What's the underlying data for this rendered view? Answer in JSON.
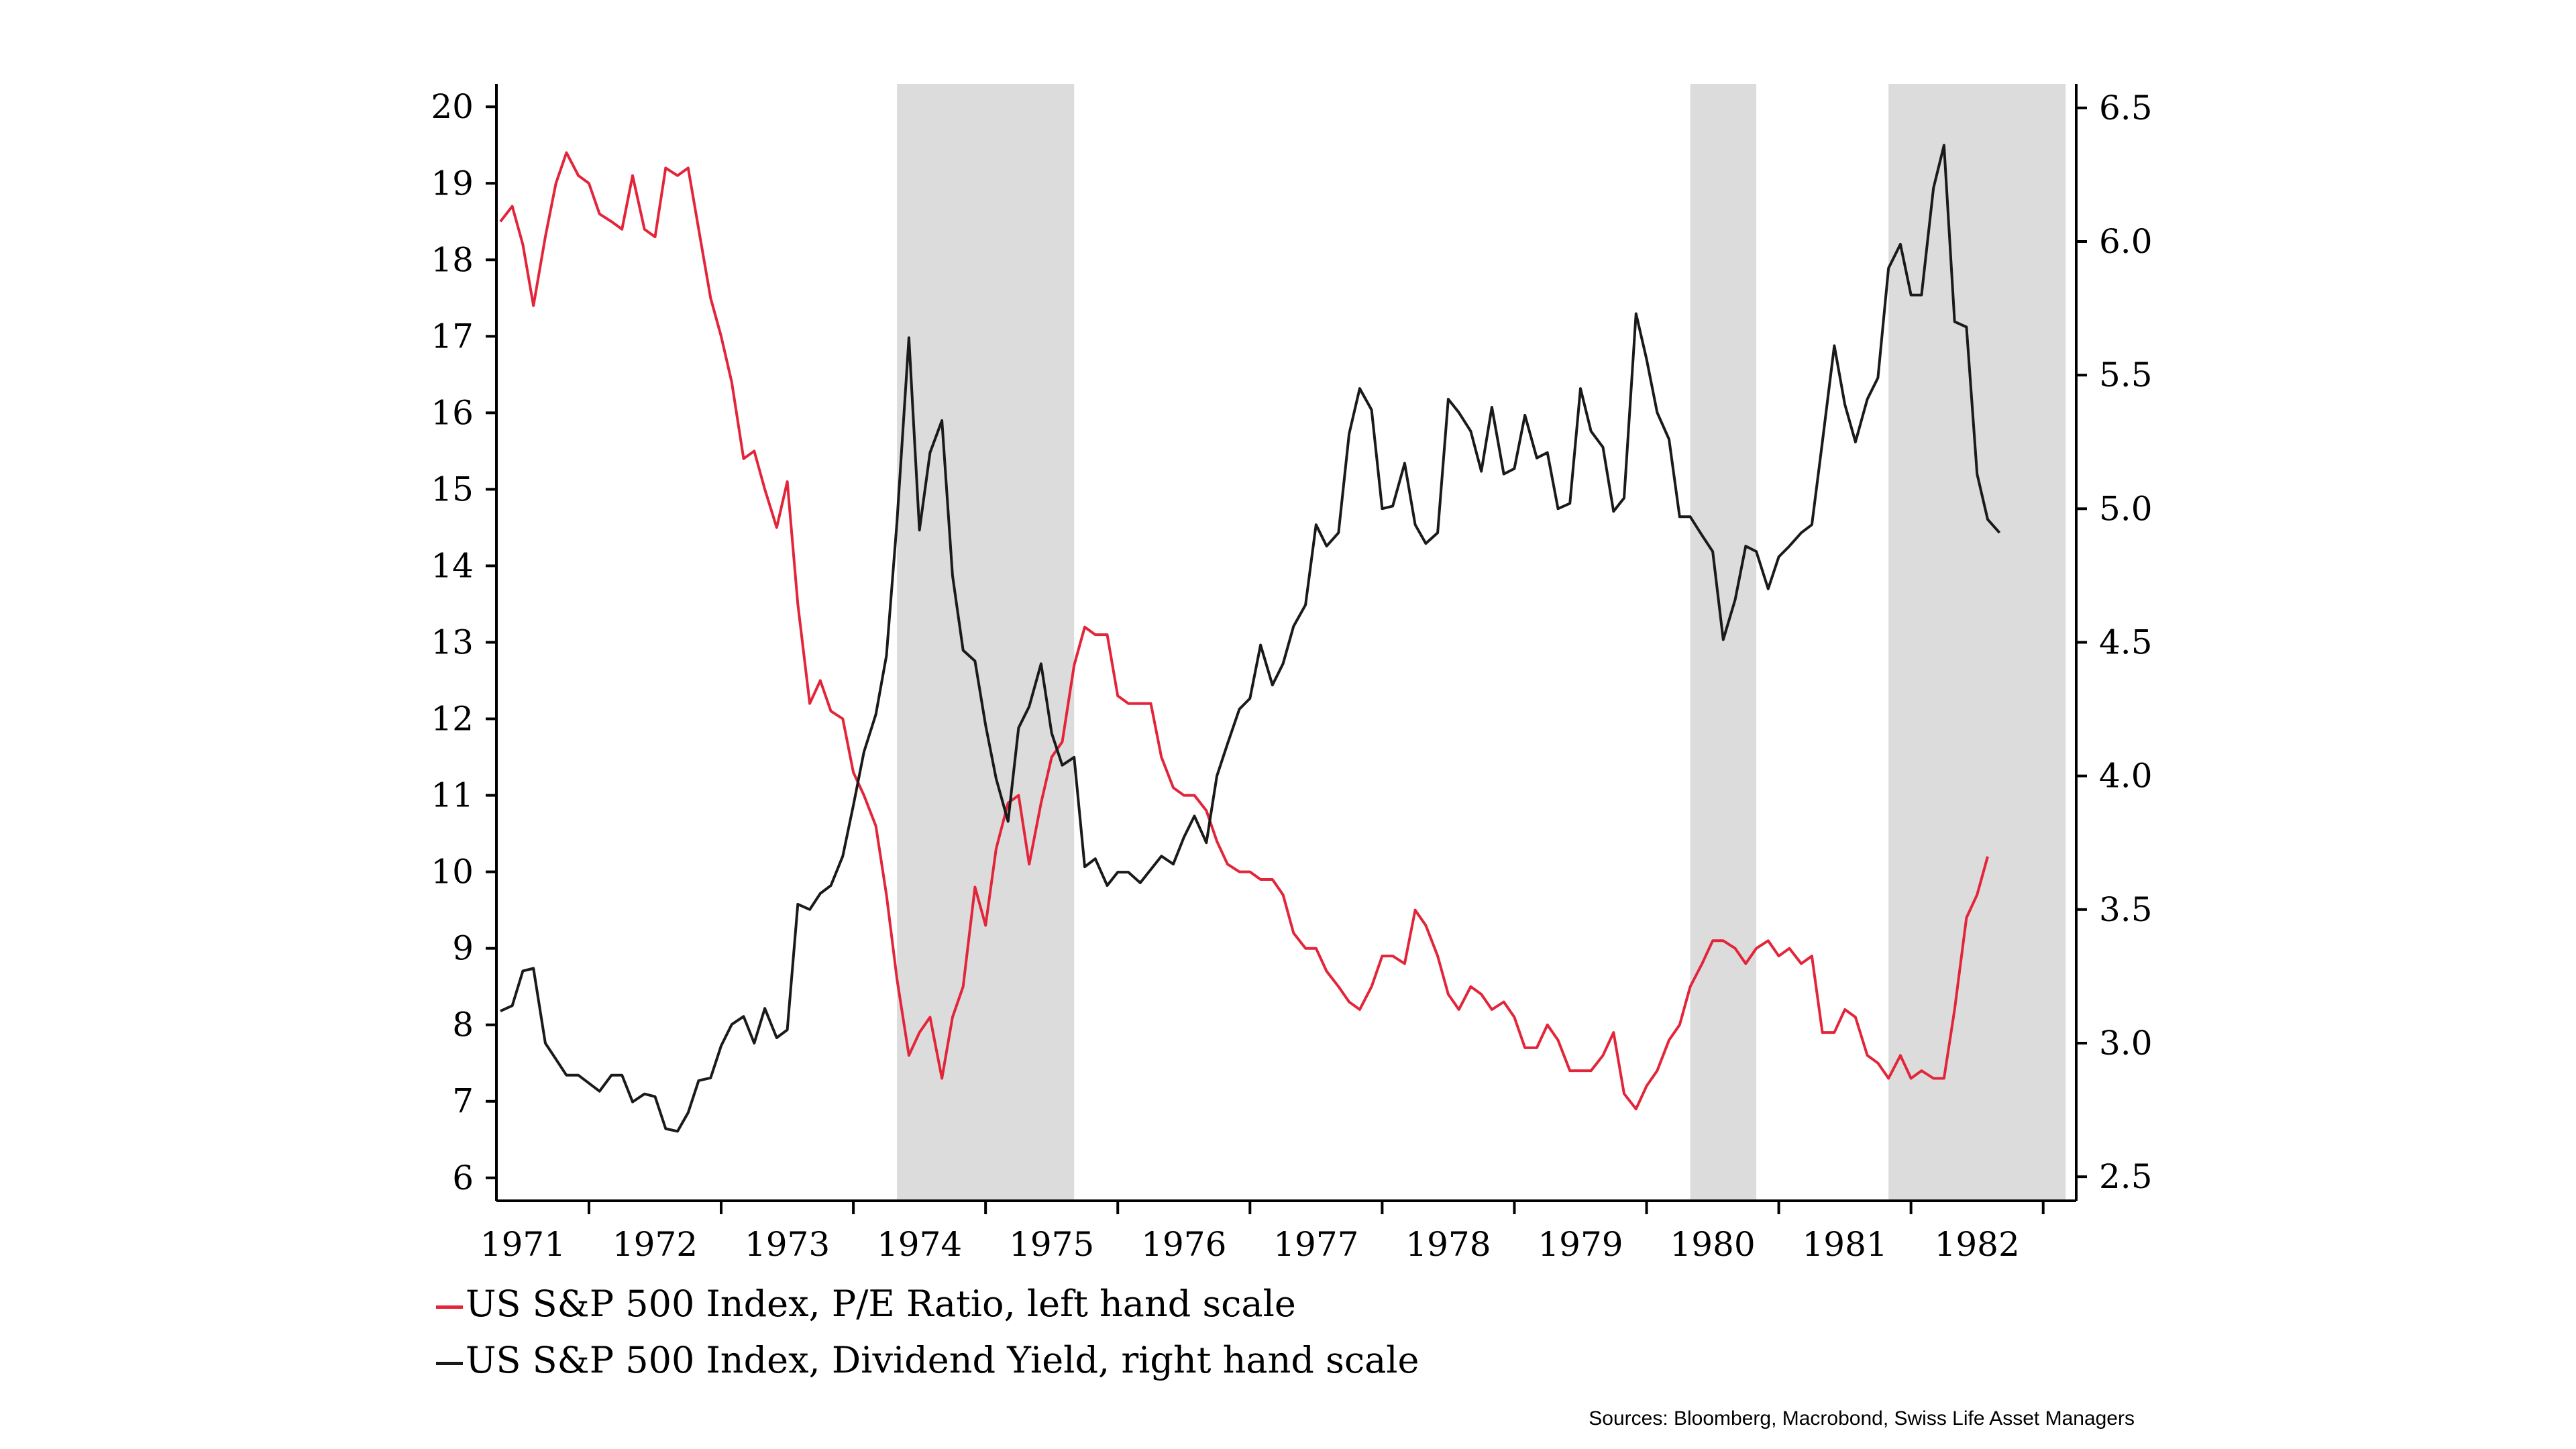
{
  "chart_data": {
    "type": "line",
    "title": "",
    "xlabel": "",
    "ylabel_left": "",
    "ylabel_right": "",
    "x_tick_labels": [
      "1971",
      "1972",
      "1973",
      "1974",
      "1975",
      "1976",
      "1977",
      "1978",
      "1979",
      "1980",
      "1981",
      "1982"
    ],
    "x_range": [
      1970.8,
      1982.75
    ],
    "y_left_ticks": [
      "6",
      "7",
      "8",
      "9",
      "10",
      "11",
      "12",
      "13",
      "14",
      "15",
      "16",
      "17",
      "18",
      "19",
      "20"
    ],
    "y_left_range": [
      5.7,
      20.3
    ],
    "y_right_ticks": [
      "2.5",
      "3.0",
      "3.5",
      "4.0",
      "4.5",
      "5.0",
      "5.5",
      "6.0",
      "6.5"
    ],
    "y_right_range": [
      2.41,
      6.59
    ],
    "recession_shading": [
      [
        1973.83,
        1975.17
      ],
      [
        1979.83,
        1980.33
      ],
      [
        1981.33,
        1982.67
      ]
    ],
    "series": [
      {
        "name": "US S&P 500 Index, P/E Ratio, left hand scale",
        "axis": "left",
        "color": "#e3253a",
        "points": [
          [
            1970.83,
            18.5
          ],
          [
            1970.92,
            18.7
          ],
          [
            1971.0,
            18.2
          ],
          [
            1971.08,
            17.4
          ],
          [
            1971.17,
            18.3
          ],
          [
            1971.25,
            19.0
          ],
          [
            1971.33,
            19.4
          ],
          [
            1971.42,
            19.1
          ],
          [
            1971.5,
            19.0
          ],
          [
            1971.58,
            18.6
          ],
          [
            1971.67,
            18.5
          ],
          [
            1971.75,
            18.4
          ],
          [
            1971.83,
            19.1
          ],
          [
            1971.92,
            18.4
          ],
          [
            1972.0,
            18.3
          ],
          [
            1972.08,
            19.2
          ],
          [
            1972.17,
            19.1
          ],
          [
            1972.25,
            19.2
          ],
          [
            1972.33,
            18.4
          ],
          [
            1972.42,
            17.5
          ],
          [
            1972.5,
            17.0
          ],
          [
            1972.58,
            16.4
          ],
          [
            1972.67,
            15.4
          ],
          [
            1972.75,
            15.5
          ],
          [
            1972.83,
            15.0
          ],
          [
            1972.92,
            14.5
          ],
          [
            1973.0,
            15.1
          ],
          [
            1973.08,
            13.5
          ],
          [
            1973.17,
            12.2
          ],
          [
            1973.25,
            12.5
          ],
          [
            1973.33,
            12.1
          ],
          [
            1973.42,
            12.0
          ],
          [
            1973.5,
            11.3
          ],
          [
            1973.58,
            11.0
          ],
          [
            1973.67,
            10.6
          ],
          [
            1973.75,
            9.7
          ],
          [
            1973.83,
            8.6
          ],
          [
            1973.92,
            7.6
          ],
          [
            1974.0,
            7.9
          ],
          [
            1974.08,
            8.1
          ],
          [
            1974.17,
            7.3
          ],
          [
            1974.25,
            8.1
          ],
          [
            1974.33,
            8.5
          ],
          [
            1974.42,
            9.8
          ],
          [
            1974.5,
            9.3
          ],
          [
            1974.58,
            10.3
          ],
          [
            1974.67,
            10.9
          ],
          [
            1974.75,
            11.0
          ],
          [
            1974.83,
            10.1
          ],
          [
            1974.92,
            10.9
          ],
          [
            1975.0,
            11.5
          ],
          [
            1975.08,
            11.7
          ],
          [
            1975.17,
            12.7
          ],
          [
            1975.25,
            13.2
          ],
          [
            1975.33,
            13.1
          ],
          [
            1975.42,
            13.1
          ],
          [
            1975.5,
            12.3
          ],
          [
            1975.58,
            12.2
          ],
          [
            1975.67,
            12.2
          ],
          [
            1975.75,
            12.2
          ],
          [
            1975.83,
            11.5
          ],
          [
            1975.92,
            11.1
          ],
          [
            1976.0,
            11.0
          ],
          [
            1976.08,
            11.0
          ],
          [
            1976.17,
            10.8
          ],
          [
            1976.25,
            10.4
          ],
          [
            1976.33,
            10.1
          ],
          [
            1976.42,
            10.0
          ],
          [
            1976.5,
            10.0
          ],
          [
            1976.58,
            9.9
          ],
          [
            1976.67,
            9.9
          ],
          [
            1976.75,
            9.7
          ],
          [
            1976.83,
            9.2
          ],
          [
            1976.92,
            9.0
          ],
          [
            1977.0,
            9.0
          ],
          [
            1977.08,
            8.7
          ],
          [
            1977.17,
            8.5
          ],
          [
            1977.25,
            8.3
          ],
          [
            1977.33,
            8.2
          ],
          [
            1977.42,
            8.5
          ],
          [
            1977.5,
            8.9
          ],
          [
            1977.58,
            8.9
          ],
          [
            1977.67,
            8.8
          ],
          [
            1977.75,
            9.5
          ],
          [
            1977.83,
            9.3
          ],
          [
            1977.92,
            8.9
          ],
          [
            1978.0,
            8.4
          ],
          [
            1978.08,
            8.2
          ],
          [
            1978.17,
            8.5
          ],
          [
            1978.25,
            8.4
          ],
          [
            1978.33,
            8.2
          ],
          [
            1978.42,
            8.3
          ],
          [
            1978.5,
            8.1
          ],
          [
            1978.58,
            7.7
          ],
          [
            1978.67,
            7.7
          ],
          [
            1978.75,
            8.0
          ],
          [
            1978.83,
            7.8
          ],
          [
            1978.92,
            7.4
          ],
          [
            1979.0,
            7.4
          ],
          [
            1979.08,
            7.4
          ],
          [
            1979.17,
            7.6
          ],
          [
            1979.25,
            7.9
          ],
          [
            1979.33,
            7.1
          ],
          [
            1979.42,
            6.9
          ],
          [
            1979.5,
            7.2
          ],
          [
            1979.58,
            7.4
          ],
          [
            1979.67,
            7.8
          ],
          [
            1979.75,
            8.0
          ],
          [
            1979.83,
            8.5
          ],
          [
            1979.92,
            8.8
          ],
          [
            1980.0,
            9.1
          ],
          [
            1980.08,
            9.1
          ],
          [
            1980.17,
            9.0
          ],
          [
            1980.25,
            8.8
          ],
          [
            1980.33,
            9.0
          ],
          [
            1980.42,
            9.1
          ],
          [
            1980.5,
            8.9
          ],
          [
            1980.58,
            9.0
          ],
          [
            1980.67,
            8.8
          ],
          [
            1980.75,
            8.9
          ],
          [
            1980.83,
            7.9
          ],
          [
            1980.92,
            7.9
          ],
          [
            1981.0,
            8.2
          ],
          [
            1981.08,
            8.1
          ],
          [
            1981.17,
            7.6
          ],
          [
            1981.25,
            7.5
          ],
          [
            1981.33,
            7.3
          ],
          [
            1981.42,
            7.6
          ],
          [
            1981.5,
            7.3
          ],
          [
            1981.58,
            7.4
          ],
          [
            1981.67,
            7.3
          ],
          [
            1981.75,
            7.3
          ],
          [
            1981.83,
            8.2
          ],
          [
            1981.92,
            9.4
          ],
          [
            1982.0,
            9.7
          ],
          [
            1982.08,
            10.2
          ]
        ]
      },
      {
        "name": "US S&P 500 Index, Dividend Yield, right hand scale",
        "axis": "right",
        "color": "#1a1a1a",
        "points": [
          [
            1970.83,
            3.12
          ],
          [
            1970.92,
            3.14
          ],
          [
            1971.0,
            3.27
          ],
          [
            1971.08,
            3.28
          ],
          [
            1971.17,
            3.0
          ],
          [
            1971.25,
            2.94
          ],
          [
            1971.33,
            2.88
          ],
          [
            1971.42,
            2.88
          ],
          [
            1971.5,
            2.85
          ],
          [
            1971.58,
            2.82
          ],
          [
            1971.67,
            2.88
          ],
          [
            1971.75,
            2.88
          ],
          [
            1971.83,
            2.78
          ],
          [
            1971.92,
            2.81
          ],
          [
            1972.0,
            2.8
          ],
          [
            1972.08,
            2.68
          ],
          [
            1972.17,
            2.67
          ],
          [
            1972.25,
            2.74
          ],
          [
            1972.33,
            2.86
          ],
          [
            1972.42,
            2.87
          ],
          [
            1972.5,
            2.99
          ],
          [
            1972.58,
            3.07
          ],
          [
            1972.67,
            3.1
          ],
          [
            1972.75,
            3.0
          ],
          [
            1972.83,
            3.13
          ],
          [
            1972.92,
            3.02
          ],
          [
            1973.0,
            3.05
          ],
          [
            1973.08,
            3.52
          ],
          [
            1973.17,
            3.5
          ],
          [
            1973.25,
            3.56
          ],
          [
            1973.33,
            3.59
          ],
          [
            1973.42,
            3.7
          ],
          [
            1973.5,
            3.89
          ],
          [
            1973.58,
            4.09
          ],
          [
            1973.67,
            4.23
          ],
          [
            1973.75,
            4.45
          ],
          [
            1973.83,
            4.95
          ],
          [
            1973.92,
            5.64
          ],
          [
            1974.0,
            4.92
          ],
          [
            1974.08,
            5.21
          ],
          [
            1974.17,
            5.33
          ],
          [
            1974.25,
            4.75
          ],
          [
            1974.33,
            4.47
          ],
          [
            1974.42,
            4.43
          ],
          [
            1974.5,
            4.19
          ],
          [
            1974.58,
            3.99
          ],
          [
            1974.67,
            3.83
          ],
          [
            1974.75,
            4.18
          ],
          [
            1974.83,
            4.26
          ],
          [
            1974.92,
            4.42
          ],
          [
            1975.0,
            4.16
          ],
          [
            1975.08,
            4.04
          ],
          [
            1975.17,
            4.07
          ],
          [
            1975.25,
            3.66
          ],
          [
            1975.33,
            3.69
          ],
          [
            1975.42,
            3.59
          ],
          [
            1975.5,
            3.64
          ],
          [
            1975.58,
            3.64
          ],
          [
            1975.67,
            3.6
          ],
          [
            1975.75,
            3.65
          ],
          [
            1975.83,
            3.7
          ],
          [
            1975.92,
            3.67
          ],
          [
            1976.0,
            3.77
          ],
          [
            1976.08,
            3.85
          ],
          [
            1976.17,
            3.75
          ],
          [
            1976.25,
            4.0
          ],
          [
            1976.33,
            4.12
          ],
          [
            1976.42,
            4.25
          ],
          [
            1976.5,
            4.29
          ],
          [
            1976.58,
            4.49
          ],
          [
            1976.67,
            4.34
          ],
          [
            1976.75,
            4.42
          ],
          [
            1976.83,
            4.56
          ],
          [
            1976.92,
            4.64
          ],
          [
            1977.0,
            4.94
          ],
          [
            1977.08,
            4.86
          ],
          [
            1977.17,
            4.91
          ],
          [
            1977.25,
            5.28
          ],
          [
            1977.33,
            5.45
          ],
          [
            1977.42,
            5.37
          ],
          [
            1977.5,
            5.0
          ],
          [
            1977.58,
            5.01
          ],
          [
            1977.67,
            5.17
          ],
          [
            1977.75,
            4.94
          ],
          [
            1977.83,
            4.87
          ],
          [
            1977.92,
            4.91
          ],
          [
            1978.0,
            5.41
          ],
          [
            1978.08,
            5.36
          ],
          [
            1978.17,
            5.29
          ],
          [
            1978.25,
            5.14
          ],
          [
            1978.33,
            5.38
          ],
          [
            1978.42,
            5.13
          ],
          [
            1978.5,
            5.15
          ],
          [
            1978.58,
            5.35
          ],
          [
            1978.67,
            5.19
          ],
          [
            1978.75,
            5.21
          ],
          [
            1978.83,
            5.0
          ],
          [
            1978.92,
            5.02
          ],
          [
            1979.0,
            5.45
          ],
          [
            1979.08,
            5.29
          ],
          [
            1979.17,
            5.23
          ],
          [
            1979.25,
            4.99
          ],
          [
            1979.33,
            5.04
          ],
          [
            1979.42,
            5.73
          ],
          [
            1979.5,
            5.56
          ],
          [
            1979.58,
            5.36
          ],
          [
            1979.67,
            5.26
          ],
          [
            1979.75,
            4.97
          ],
          [
            1979.83,
            4.97
          ],
          [
            1979.92,
            4.9
          ],
          [
            1980.0,
            4.84
          ],
          [
            1980.08,
            4.51
          ],
          [
            1980.17,
            4.66
          ],
          [
            1980.25,
            4.86
          ],
          [
            1980.33,
            4.84
          ],
          [
            1980.42,
            4.7
          ],
          [
            1980.5,
            4.82
          ],
          [
            1980.58,
            4.86
          ],
          [
            1980.67,
            4.91
          ],
          [
            1980.75,
            4.94
          ],
          [
            1980.83,
            5.25
          ],
          [
            1980.92,
            5.61
          ],
          [
            1981.0,
            5.39
          ],
          [
            1981.08,
            5.25
          ],
          [
            1981.17,
            5.41
          ],
          [
            1981.25,
            5.49
          ],
          [
            1981.33,
            5.9
          ],
          [
            1981.42,
            5.99
          ],
          [
            1981.5,
            5.8
          ],
          [
            1981.58,
            5.8
          ],
          [
            1981.67,
            6.2
          ],
          [
            1981.75,
            6.36
          ],
          [
            1981.83,
            5.7
          ],
          [
            1981.92,
            5.68
          ],
          [
            1982.0,
            5.13
          ],
          [
            1982.08,
            4.96
          ],
          [
            1982.17,
            4.91
          ]
        ]
      }
    ],
    "legend": [
      "US S&P 500 Index, P/E Ratio, left hand scale",
      "US S&P 500 Index, Dividend Yield, right hand scale"
    ],
    "legend_position": "bottom-left",
    "grid": false
  },
  "legend_labels": {
    "pe": "US S&P 500 Index, P/E Ratio, left hand scale",
    "dy": "US S&P 500 Index, Dividend Yield, right hand scale"
  },
  "source": "Sources: Bloomberg, Macrobond, Swiss Life Asset Managers",
  "colors": {
    "pe_line": "#e3253a",
    "dy_line": "#1a1a1a",
    "shading": "#dcdcdc"
  }
}
